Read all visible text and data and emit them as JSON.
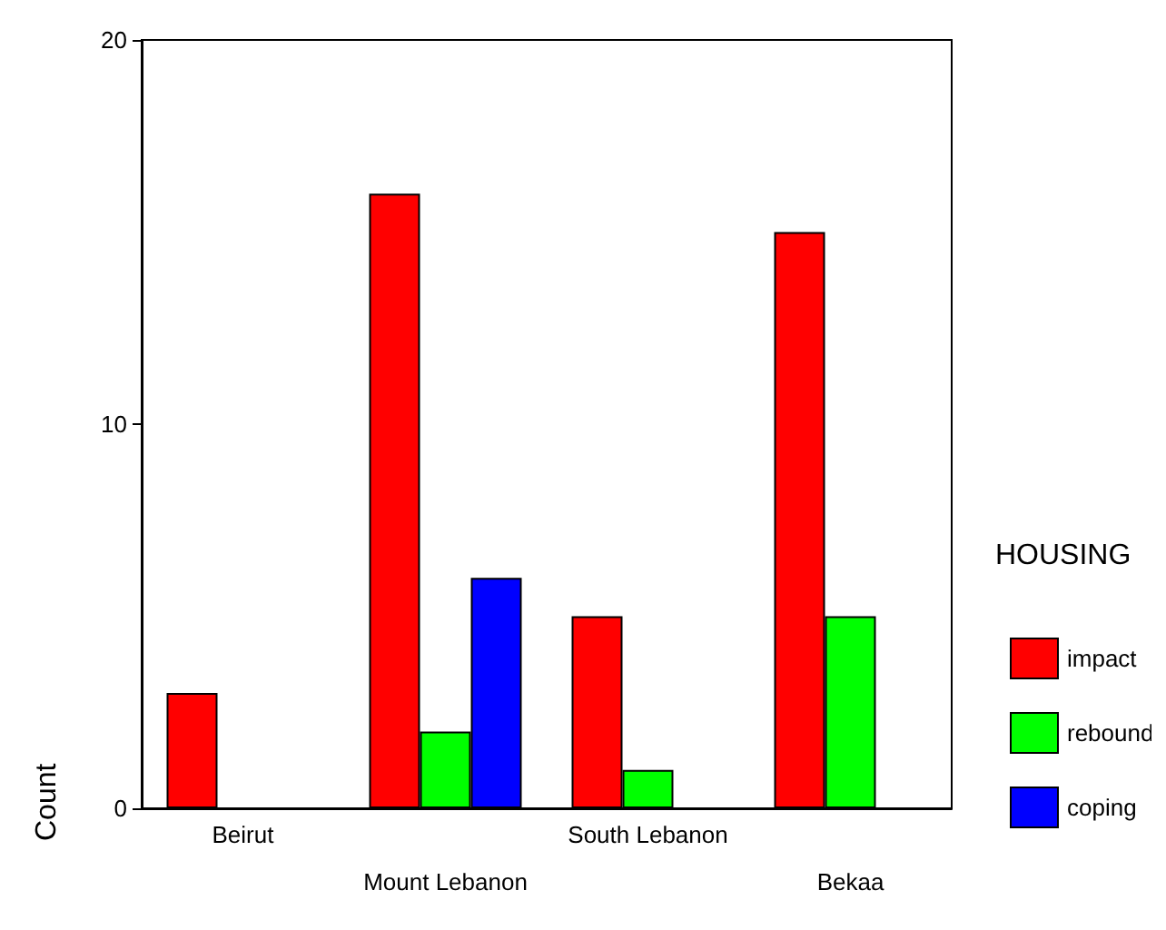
{
  "chart_data": {
    "type": "bar",
    "ylabel": "Count",
    "legend_title": "HOUSING",
    "categories": [
      "Beirut",
      "Mount Lebanon",
      "South Lebanon",
      "Bekaa"
    ],
    "series": [
      {
        "name": "impact",
        "color": "#ff0000",
        "values": [
          3,
          16,
          5,
          15
        ]
      },
      {
        "name": "rebound",
        "color": "#00ff00",
        "values": [
          null,
          2,
          1,
          5
        ]
      },
      {
        "name": "coping",
        "color": "#0000ff",
        "values": [
          null,
          6,
          null,
          null
        ]
      }
    ],
    "ylim": [
      0,
      20
    ],
    "yticks": [
      0,
      10,
      20
    ],
    "grid": false,
    "legend": "right"
  }
}
